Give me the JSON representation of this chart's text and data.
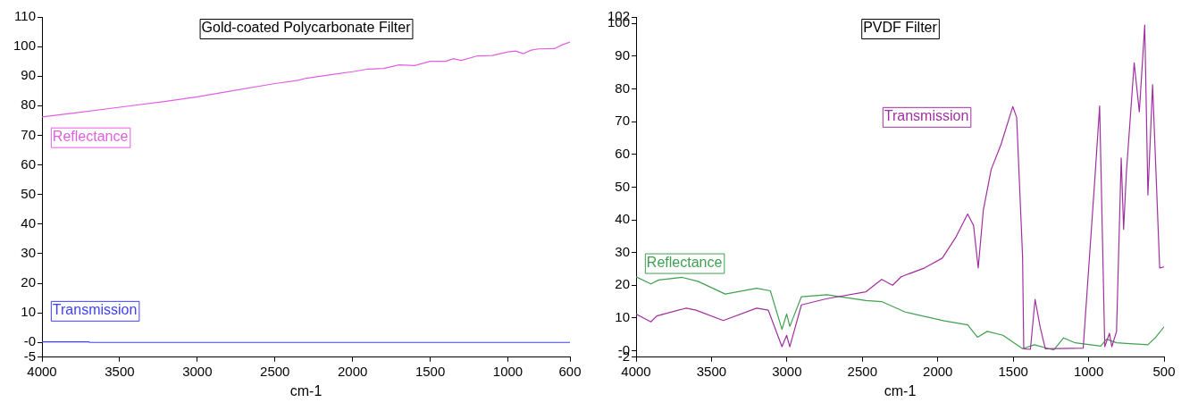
{
  "chart_data": [
    {
      "type": "line",
      "title": "Gold-coated Polycarbonate Filter",
      "xlabel": "cm-1",
      "xlim": [
        4000,
        600
      ],
      "xticks": [
        4000,
        3500,
        3000,
        2500,
        2000,
        1500,
        1000,
        600
      ],
      "ylim": [
        -5,
        110
      ],
      "yticks": [
        -5,
        {
          "value": 0,
          "label": "-0"
        },
        10,
        20,
        30,
        40,
        50,
        60,
        70,
        80,
        90,
        100,
        110
      ],
      "grid": false,
      "series": [
        {
          "name": "Reflectance",
          "color": "#e060e0",
          "x": [
            4000,
            3800,
            3500,
            3200,
            3000,
            2800,
            2500,
            2350,
            2300,
            2100,
            2000,
            1900,
            1800,
            1700,
            1600,
            1500,
            1400,
            1350,
            1300,
            1200,
            1100,
            1000,
            950,
            900,
            850,
            800,
            700,
            650,
            600
          ],
          "values": [
            76.2,
            77.5,
            79.5,
            81.5,
            83,
            84.8,
            87.5,
            88.6,
            89.3,
            90.8,
            91.5,
            92.4,
            92.6,
            93.8,
            93.6,
            95,
            95,
            95.9,
            95.3,
            96.8,
            97,
            98.2,
            98.5,
            97.6,
            98.8,
            99.2,
            99.3,
            100.6,
            101.5
          ]
        },
        {
          "name": "Transmission",
          "color": "#4040ff",
          "x": [
            4000,
            3700,
            3690,
            600
          ],
          "values": [
            0.2,
            0.2,
            0,
            0
          ]
        }
      ]
    },
    {
      "type": "line",
      "title": "PVDF Filter",
      "xlabel": "cm-1",
      "xlim": [
        4000,
        500
      ],
      "xticks": [
        4000,
        3500,
        3000,
        2500,
        2000,
        1500,
        1000,
        500
      ],
      "ylim": [
        -2,
        102
      ],
      "yticks": [
        -2,
        {
          "value": 0,
          "label": "-0"
        },
        10,
        20,
        30,
        40,
        50,
        60,
        70,
        80,
        90,
        100,
        102
      ],
      "grid": false,
      "series": [
        {
          "name": "Transmission",
          "color": "#a030a0",
          "x": [
            4000,
            3902,
            3863,
            3668,
            3603,
            3422,
            3201,
            3124,
            3033,
            3002,
            2981,
            2904,
            2735,
            2476,
            2372,
            2300,
            2243,
            2087,
            1970,
            1880,
            1802,
            1763,
            1732,
            1698,
            1646,
            1581,
            1503,
            1477,
            1438,
            1430,
            1386,
            1355,
            1321,
            1287,
            1036,
            958,
            927,
            893,
            862,
            846,
            815,
            784,
            768,
            750,
            698,
            664,
            628,
            607,
            576,
            529,
            500
          ],
          "values": [
            11.2,
            8.8,
            10.6,
            13,
            12.4,
            9.2,
            13,
            12.4,
            1.2,
            4.7,
            1.2,
            14,
            15.9,
            18,
            21.8,
            20,
            22.6,
            25.3,
            28.3,
            34.7,
            41.8,
            38.3,
            25.3,
            43,
            55.4,
            63,
            74.6,
            71.3,
            28.9,
            0.6,
            0.4,
            15.7,
            7.1,
            0.6,
            0.8,
            53,
            74.8,
            1.2,
            5.3,
            1.2,
            5.9,
            58.9,
            37.1,
            54.2,
            88,
            73,
            99.5,
            47.6,
            81.3,
            25.3,
            25.6
          ]
        },
        {
          "name": "Reflectance",
          "color": "#40a050",
          "x": [
            4000,
            3902,
            3850,
            3694,
            3590,
            3409,
            3201,
            3110,
            3033,
            3002,
            2981,
            2904,
            2735,
            2476,
            2372,
            2216,
            1957,
            1802,
            1737,
            1672,
            1568,
            1438,
            1360,
            1231,
            1166,
            1089,
            920,
            881,
            815,
            607,
            555,
            500
          ],
          "values": [
            22.6,
            20.4,
            21.6,
            22.4,
            21.2,
            17.3,
            19.1,
            18.3,
            6.5,
            11.2,
            7.4,
            16.5,
            17.1,
            15.3,
            15,
            11.8,
            9.1,
            7.9,
            4.1,
            5.9,
            4.7,
            0.6,
            1.8,
            0.2,
            3.9,
            2.4,
            1.4,
            3.5,
            2.4,
            1.8,
            4.1,
            7.3
          ]
        }
      ]
    }
  ]
}
